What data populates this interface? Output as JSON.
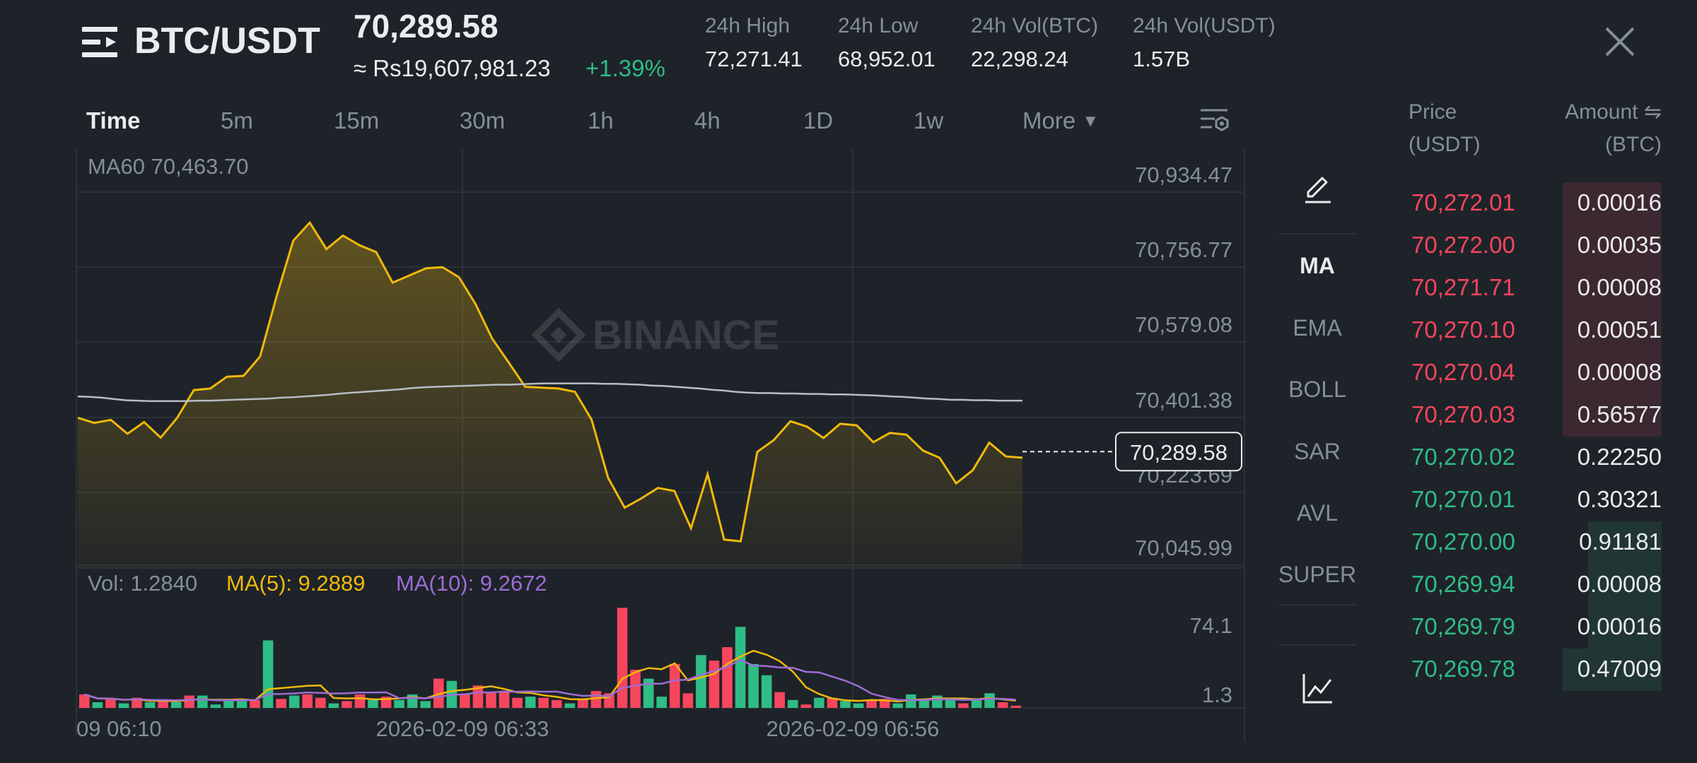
{
  "header": {
    "pair": "BTC/USDT",
    "last_price": "70,289.58",
    "fiat_price": "≈ Rs19,607,981.23",
    "change_pct": "+1.39%",
    "stats": [
      {
        "label": "24h High",
        "value": "72,271.41"
      },
      {
        "label": "24h Low",
        "value": "68,952.01"
      },
      {
        "label": "24h Vol(BTC)",
        "value": "22,298.24"
      },
      {
        "label": "24h Vol(USDT)",
        "value": "1.57B"
      }
    ]
  },
  "intervals": [
    "Time",
    "5m",
    "15m",
    "30m",
    "1h",
    "4h",
    "1D",
    "1w",
    "More"
  ],
  "active_interval": "Time",
  "indicators": [
    "MA",
    "EMA",
    "BOLL",
    "SAR",
    "AVL",
    "SUPER"
  ],
  "active_indicator": "MA",
  "watermark": "BINANCE",
  "colors": {
    "up": "#2ebd85",
    "down": "#f6465d",
    "price_line": "#f0b90b",
    "ma60": "#b7bdc6",
    "ma5": "#f0b90b",
    "ma10": "#9d6cd5",
    "bg": "#1e2329"
  },
  "chart_data": {
    "type": "line",
    "price_legend": "MA60 70,463.70",
    "price_axis_ticks": [
      "70,934.47",
      "70,756.77",
      "70,579.08",
      "70,401.38",
      "70,223.69",
      "70,045.99"
    ],
    "price_axis_values": [
      70934.47,
      70756.77,
      70579.08,
      70401.38,
      70223.69,
      70045.99
    ],
    "current_price_label": "70,289.58",
    "current_price": 70289.58,
    "x_labels": [
      "09 06:10",
      "2026-02-09 06:33",
      "2026-02-09 06:56"
    ],
    "series": [
      {
        "name": "MA60",
        "values": [
          70421,
          70420,
          70418,
          70415,
          70412,
          70411,
          70410,
          70410,
          70410,
          70410,
          70411,
          70411,
          70412,
          70413,
          70414,
          70415,
          70416,
          70418,
          70419,
          70421,
          70423,
          70425,
          70428,
          70430,
          70432,
          70434,
          70436,
          70438,
          70441,
          70443,
          70444,
          70445,
          70446,
          70447,
          70448,
          70449,
          70449,
          70450,
          70451,
          70452,
          70452,
          70452,
          70452,
          70452,
          70451,
          70451,
          70450,
          70449,
          70447,
          70446,
          70444,
          70442,
          70440,
          70437,
          70435,
          70432,
          70430,
          70429,
          70429,
          70428,
          70428,
          70427,
          70427,
          70426,
          70426,
          70425,
          70424,
          70423,
          70421,
          70420,
          70418,
          70416,
          70415,
          70413,
          70413,
          70412,
          70412,
          70411,
          70411,
          70411
        ]
      },
      {
        "name": "Price",
        "values": [
          70370,
          70358,
          70365,
          70332,
          70360,
          70323,
          70370,
          70436,
          70440,
          70468,
          70470,
          70516,
          70660,
          70792,
          70835,
          70772,
          70804,
          70781,
          70765,
          70692,
          70709,
          70726,
          70729,
          70705,
          70641,
          70559,
          70502,
          70444,
          70442,
          70440,
          70432,
          70366,
          70227,
          70156,
          70178,
          70203,
          70196,
          70107,
          70236,
          70080,
          70076,
          70289,
          70317,
          70362,
          70349,
          70322,
          70356,
          70352,
          70312,
          70334,
          70330,
          70292,
          70275,
          70214,
          70245,
          70311,
          70278,
          70275
        ]
      }
    ],
    "volume": {
      "legend": {
        "vol": "Vol: 1.2840",
        "ma5": "MA(5): 9.2889",
        "ma10": "MA(10): 9.2672"
      },
      "axis_ticks": [
        "74.1",
        "1.3"
      ],
      "axis_values": [
        74.1,
        1.3
      ],
      "bars": [
        {
          "v": 12,
          "up": false
        },
        {
          "v": 5,
          "up": true
        },
        {
          "v": 8,
          "up": false
        },
        {
          "v": 4,
          "up": true
        },
        {
          "v": 9,
          "up": false
        },
        {
          "v": 5,
          "up": true
        },
        {
          "v": 6,
          "up": false
        },
        {
          "v": 5,
          "up": true
        },
        {
          "v": 11,
          "up": false
        },
        {
          "v": 11,
          "up": true
        },
        {
          "v": 3,
          "up": true
        },
        {
          "v": 6,
          "up": true
        },
        {
          "v": 7,
          "up": true
        },
        {
          "v": 7,
          "up": false
        },
        {
          "v": 60,
          "up": true
        },
        {
          "v": 8,
          "up": false
        },
        {
          "v": 11,
          "up": true
        },
        {
          "v": 12,
          "up": false
        },
        {
          "v": 9,
          "up": false
        },
        {
          "v": 4,
          "up": true
        },
        {
          "v": 6,
          "up": false
        },
        {
          "v": 12,
          "up": false
        },
        {
          "v": 7,
          "up": true
        },
        {
          "v": 10,
          "up": false
        },
        {
          "v": 7,
          "up": true
        },
        {
          "v": 12,
          "up": true
        },
        {
          "v": 6,
          "up": true
        },
        {
          "v": 26,
          "up": false
        },
        {
          "v": 24,
          "up": true
        },
        {
          "v": 12,
          "up": false
        },
        {
          "v": 20,
          "up": false
        },
        {
          "v": 14,
          "up": false
        },
        {
          "v": 14,
          "up": false
        },
        {
          "v": 9,
          "up": false
        },
        {
          "v": 10,
          "up": true
        },
        {
          "v": 9,
          "up": false
        },
        {
          "v": 7,
          "up": false
        },
        {
          "v": 4,
          "up": true
        },
        {
          "v": 8,
          "up": false
        },
        {
          "v": 15,
          "up": false
        },
        {
          "v": 13,
          "up": false
        },
        {
          "v": 89,
          "up": false
        },
        {
          "v": 34,
          "up": false
        },
        {
          "v": 26,
          "up": true
        },
        {
          "v": 10,
          "up": true
        },
        {
          "v": 39,
          "up": false
        },
        {
          "v": 13,
          "up": false
        },
        {
          "v": 47,
          "up": true
        },
        {
          "v": 42,
          "up": false
        },
        {
          "v": 54,
          "up": false
        },
        {
          "v": 72,
          "up": true
        },
        {
          "v": 39,
          "up": true
        },
        {
          "v": 29,
          "up": true
        },
        {
          "v": 14,
          "up": false
        },
        {
          "v": 7,
          "up": true
        },
        {
          "v": 3,
          "up": false
        },
        {
          "v": 9,
          "up": true
        },
        {
          "v": 9,
          "up": false
        },
        {
          "v": 6,
          "up": true
        },
        {
          "v": 4,
          "up": true
        },
        {
          "v": 7,
          "up": false
        },
        {
          "v": 8,
          "up": false
        },
        {
          "v": 4,
          "up": true
        },
        {
          "v": 12,
          "up": true
        },
        {
          "v": 7,
          "up": true
        },
        {
          "v": 11,
          "up": true
        },
        {
          "v": 8,
          "up": true
        },
        {
          "v": 4,
          "up": false
        },
        {
          "v": 8,
          "up": true
        },
        {
          "v": 13,
          "up": true
        },
        {
          "v": 5,
          "up": false
        },
        {
          "v": 2,
          "up": false
        }
      ]
    }
  },
  "orderbook": {
    "price_header": [
      "Price",
      "(USDT)"
    ],
    "amount_header": [
      "Amount ⇋",
      "(BTC)"
    ],
    "asks": [
      {
        "price": "70,272.01",
        "amount": "0.00016",
        "depth": 0.39
      },
      {
        "price": "70,272.00",
        "amount": "0.00035",
        "depth": 0.39
      },
      {
        "price": "70,271.71",
        "amount": "0.00008",
        "depth": 0.39
      },
      {
        "price": "70,270.10",
        "amount": "0.00051",
        "depth": 0.39
      },
      {
        "price": "70,270.04",
        "amount": "0.00008",
        "depth": 0.39
      },
      {
        "price": "70,270.03",
        "amount": "0.56577",
        "depth": 0.39
      }
    ],
    "bids": [
      {
        "price": "70,270.02",
        "amount": "0.22250",
        "depth": 0.0
      },
      {
        "price": "70,270.01",
        "amount": "0.30321",
        "depth": 0.0
      },
      {
        "price": "70,270.00",
        "amount": "0.91181",
        "depth": 0.29
      },
      {
        "price": "70,269.94",
        "amount": "0.00008",
        "depth": 0.29
      },
      {
        "price": "70,269.79",
        "amount": "0.00016",
        "depth": 0.29
      },
      {
        "price": "70,269.78",
        "amount": "0.47009",
        "depth": 0.39
      }
    ]
  }
}
